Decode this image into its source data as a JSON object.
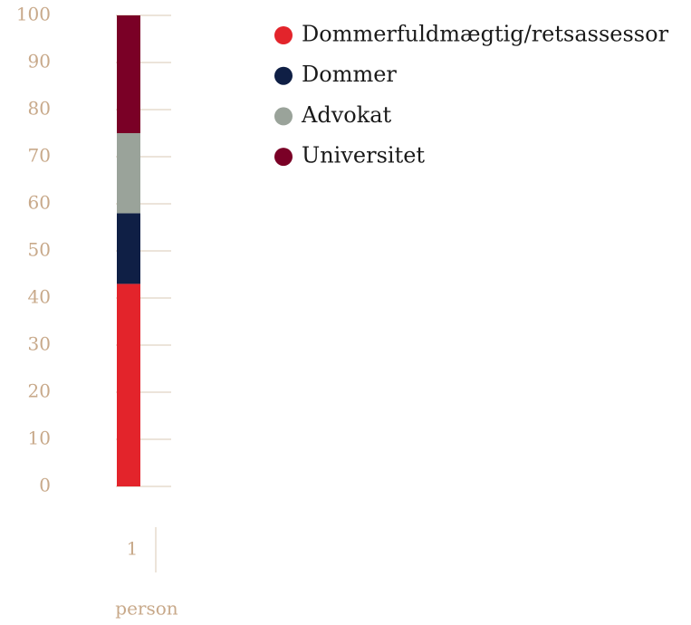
{
  "chart_data": {
    "type": "bar",
    "stacked": true,
    "x_label": "person",
    "categories": [
      "1"
    ],
    "series": [
      {
        "name": "Dommerfuldmægtig/retsassessor",
        "color": "#e3242b",
        "values": [
          43
        ]
      },
      {
        "name": "Dommer",
        "color": "#0f1f45",
        "values": [
          15
        ]
      },
      {
        "name": "Advokat",
        "color": "#9aa39a",
        "values": [
          17
        ]
      },
      {
        "name": "Universitet",
        "color": "#7a0026",
        "values": [
          25
        ]
      }
    ],
    "ylim": [
      0,
      100
    ],
    "yticks": [
      0,
      10,
      20,
      30,
      40,
      50,
      60,
      70,
      80,
      90,
      100
    ],
    "grid": true,
    "legend": "top-right"
  }
}
